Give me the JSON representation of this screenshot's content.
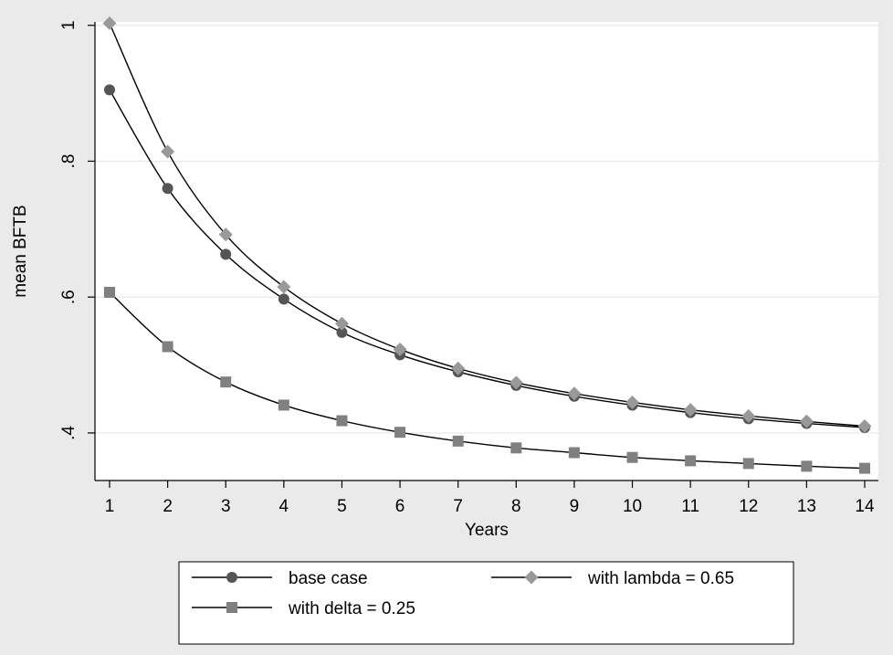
{
  "chart_data": {
    "type": "line",
    "title": "",
    "xlabel": "Years",
    "ylabel": "mean BFTB",
    "x": [
      1,
      2,
      3,
      4,
      5,
      6,
      7,
      8,
      9,
      10,
      11,
      12,
      13,
      14
    ],
    "xlim": [
      1,
      14
    ],
    "ylim": [
      0.33,
      1.005
    ],
    "yticks": [
      0.4,
      0.6,
      0.8,
      1.0
    ],
    "ytick_labels": [
      ".4",
      ".6",
      ".8",
      "1"
    ],
    "xtick_labels": [
      "1",
      "2",
      "3",
      "4",
      "5",
      "6",
      "7",
      "8",
      "9",
      "10",
      "11",
      "12",
      "13",
      "14"
    ],
    "grid": true,
    "legend_position": "bottom",
    "series": [
      {
        "name": "base case",
        "marker": "circle",
        "color": "#555555",
        "values": [
          0.905,
          0.76,
          0.663,
          0.597,
          0.548,
          0.515,
          0.49,
          0.47,
          0.454,
          0.441,
          0.43,
          0.421,
          0.414,
          0.408
        ]
      },
      {
        "name": "with lambda = 0.65",
        "marker": "diamond",
        "color": "#999999",
        "values": [
          1.003,
          0.814,
          0.692,
          0.615,
          0.561,
          0.523,
          0.495,
          0.474,
          0.458,
          0.445,
          0.434,
          0.425,
          0.417,
          0.41
        ]
      },
      {
        "name": "with delta = 0.25",
        "marker": "square",
        "color": "#808080",
        "values": [
          0.607,
          0.527,
          0.475,
          0.441,
          0.418,
          0.401,
          0.388,
          0.378,
          0.371,
          0.364,
          0.359,
          0.355,
          0.351,
          0.348
        ]
      }
    ]
  }
}
